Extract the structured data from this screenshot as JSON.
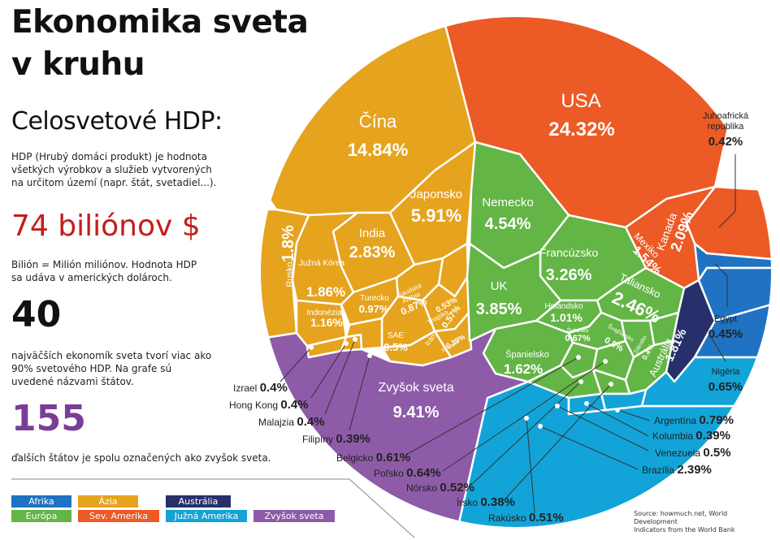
{
  "title_line1": "Ekonomika sveta",
  "title_line2": "v kruhu",
  "subtitle": "Celosvetové HDP:",
  "definition": [
    "HDP (Hrubý domáci produkt) je hodnota",
    "všetkých výrobkov a služieb vytvorených",
    "na určitom území (napr. štát, svetadiel...)."
  ],
  "total_value": "74 biliónov $",
  "billion_note": [
    "Bilión = Milión miliónov. Hodnota HDP",
    "sa udáva v amerických dolároch."
  ],
  "top_count": "40",
  "top_text": [
    "najväčších ekonomík sveta tvorí viac ako",
    "90% svetového HDP.  Na grafe sú",
    "uvedené názvami štátov."
  ],
  "rest_count": "155",
  "rest_text": "ďalších štátov je spolu  označených ako zvyšok sveta.",
  "source": [
    "Source: howmuch.net, World Development",
    "Indicators from the World Bank"
  ],
  "colors": {
    "Afrika": "#1f73c2",
    "Ázia": "#e6a31e",
    "Austrália": "#27306b",
    "Európa": "#63b545",
    "Sev. Amerika": "#ec5a25",
    "Južná Amerika": "#12a4d8",
    "Zvyšok sveta": "#8e5ba8"
  },
  "legend": [
    {
      "label": "Afrika",
      "region": "Afrika"
    },
    {
      "label": "Ázia",
      "region": "Ázia"
    },
    {
      "label": "Austrália",
      "region": "Austrália"
    },
    {
      "label": "Európa",
      "region": "Európa"
    },
    {
      "label": "Sev. Amerika",
      "region": "Sev. Amerika"
    },
    {
      "label": "Južná Amerika",
      "region": "Južná Amerika"
    },
    {
      "label": "Zvyšok sveta",
      "region": "Zvyšok sveta"
    }
  ],
  "chart_data": {
    "type": "voronoi-treemap",
    "unit": "% svetového HDP",
    "cells": [
      {
        "name": "USA",
        "value": 24.32,
        "label": "24.32%",
        "region": "Sev. Amerika"
      },
      {
        "name": "Kanada",
        "value": 2.09,
        "label": "2.09%",
        "region": "Sev. Amerika"
      },
      {
        "name": "Mexiko",
        "value": 1.54,
        "label": "1.54%",
        "region": "Sev. Amerika"
      },
      {
        "name": "Čína",
        "value": 14.84,
        "label": "14.84%",
        "region": "Ázia"
      },
      {
        "name": "Japonsko",
        "value": 5.91,
        "label": "5.91%",
        "region": "Ázia"
      },
      {
        "name": "India",
        "value": 2.83,
        "label": "2.83%",
        "region": "Ázia"
      },
      {
        "name": "Južná Kórea",
        "value": 1.86,
        "label": "1.86%",
        "region": "Ázia"
      },
      {
        "name": "Rusko",
        "value": 1.8,
        "label": "1.8%",
        "region": "Ázia"
      },
      {
        "name": "Indonézia",
        "value": 1.16,
        "label": "1.16%",
        "region": "Ázia"
      },
      {
        "name": "Turecko",
        "value": 0.97,
        "label": "0.97%",
        "region": "Ázia"
      },
      {
        "name": "Saudská Arábia",
        "value": 0.87,
        "label": "0.87%",
        "region": "Ázia"
      },
      {
        "name": "Thajsko",
        "value": 0.53,
        "label": "0.53%",
        "region": "Ázia"
      },
      {
        "name": "Irán",
        "value": 0.57,
        "label": "0.57%",
        "region": "Ázia"
      },
      {
        "name": "SAE",
        "value": 0.5,
        "label": "0.5%",
        "region": "Ázia"
      },
      {
        "name": "Singapur",
        "value": 0.39,
        "label": "0.39%",
        "region": "Ázia"
      },
      {
        "name": "Izrael",
        "value": 0.4,
        "label": "0.4%",
        "region": "Ázia"
      },
      {
        "name": "Hong Kong",
        "value": 0.4,
        "label": "0.4%",
        "region": "Ázia"
      },
      {
        "name": "Malajzia",
        "value": 0.4,
        "label": "0.4%",
        "region": "Ázia"
      },
      {
        "name": "Filipíny",
        "value": 0.39,
        "label": "0.39%",
        "region": "Ázia"
      },
      {
        "name": "Nemecko",
        "value": 4.54,
        "label": "4.54%",
        "region": "Európa"
      },
      {
        "name": "Francúzsko",
        "value": 3.26,
        "label": "3.26%",
        "region": "Európa"
      },
      {
        "name": "UK",
        "value": 3.85,
        "label": "3.85%",
        "region": "Európa"
      },
      {
        "name": "Taliansko",
        "value": 2.46,
        "label": "2.46%",
        "region": "Európa"
      },
      {
        "name": "Španielsko",
        "value": 1.62,
        "label": "1.62%",
        "region": "Európa"
      },
      {
        "name": "Holandsko",
        "value": 1.01,
        "label": "1.01%",
        "region": "Európa"
      },
      {
        "name": "Švédsko",
        "value": 0.67,
        "label": "0.67%",
        "region": "Európa"
      },
      {
        "name": "Švajčiarsko",
        "value": 0.9,
        "label": "0.9%",
        "region": "Európa"
      },
      {
        "name": "Dánsko",
        "value": 0.4,
        "label": "0.4%",
        "region": "Európa"
      },
      {
        "name": "Belgicko",
        "value": 0.61,
        "label": "0.61%",
        "region": "Európa"
      },
      {
        "name": "Poľsko",
        "value": 0.64,
        "label": "0.64%",
        "region": "Európa"
      },
      {
        "name": "Nórsko",
        "value": 0.52,
        "label": "0.52%",
        "region": "Európa"
      },
      {
        "name": "Írsko",
        "value": 0.38,
        "label": "0.38%",
        "region": "Európa"
      },
      {
        "name": "Rakúsko",
        "value": 0.51,
        "label": "0.51%",
        "region": "Európa"
      },
      {
        "name": "Austrália",
        "value": 1.81,
        "label": "1.81%",
        "region": "Austrália"
      },
      {
        "name": "Juhoafrická republika",
        "value": 0.42,
        "label": "0.42%",
        "region": "Afrika"
      },
      {
        "name": "Egypt",
        "value": 0.45,
        "label": "0.45%",
        "region": "Afrika"
      },
      {
        "name": "Nigéria",
        "value": 0.65,
        "label": "0.65%",
        "region": "Afrika"
      },
      {
        "name": "Argentína",
        "value": 0.79,
        "label": "0.79%",
        "region": "Južná Amerika"
      },
      {
        "name": "Kolumbia",
        "value": 0.39,
        "label": "0.39%",
        "region": "Južná Amerika"
      },
      {
        "name": "Venezuela",
        "value": 0.5,
        "label": "0.5%",
        "region": "Južná Amerika"
      },
      {
        "name": "Brazília",
        "value": 2.39,
        "label": "2.39%",
        "region": "Južná Amerika"
      },
      {
        "name": "Zvyšok sveta",
        "value": 9.41,
        "label": "9.41%",
        "region": "Zvyšok sveta"
      }
    ]
  }
}
